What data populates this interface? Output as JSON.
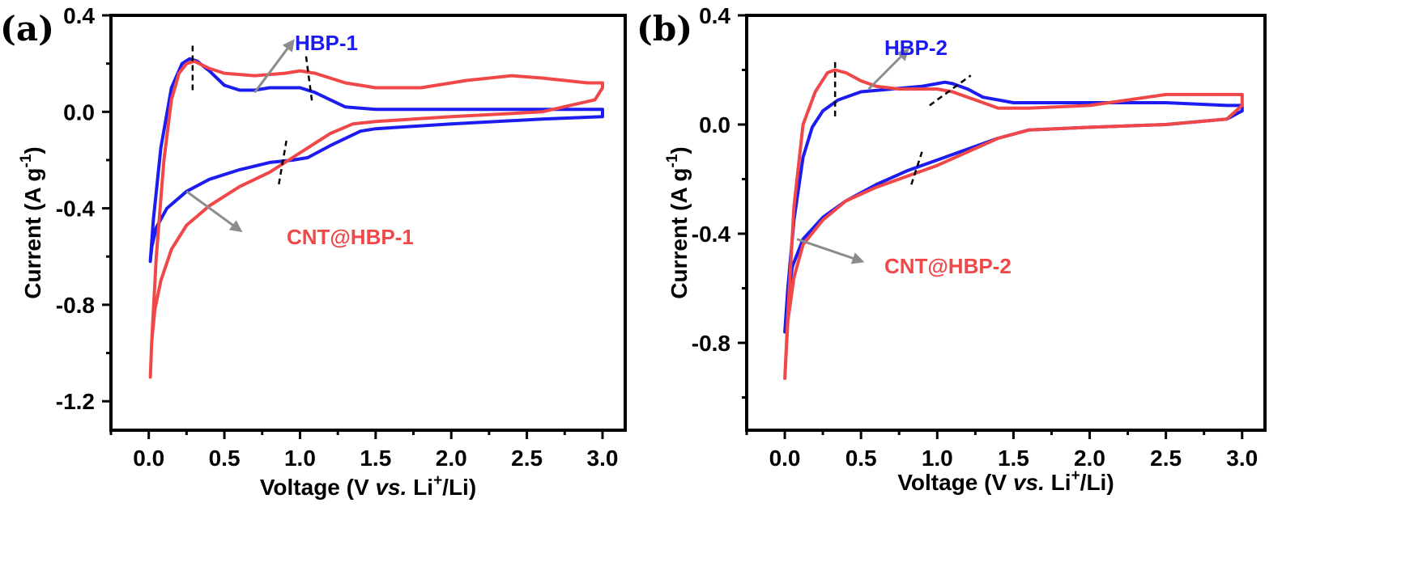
{
  "chart_data": [
    {
      "type": "line",
      "panel_label": "(a)",
      "xlabel_parts": [
        "Voltage (V ",
        "vs.",
        " Li",
        "+",
        "/Li)"
      ],
      "ylabel_parts": [
        "Current (A g",
        "-1",
        ")"
      ],
      "xlim": [
        -0.25,
        3.15
      ],
      "ylim": [
        -1.32,
        0.4
      ],
      "xticks": [
        0.0,
        0.5,
        1.0,
        1.5,
        2.0,
        2.5,
        3.0
      ],
      "xtick_labels": [
        "0.0",
        "0.5",
        "1.0",
        "1.5",
        "2.0",
        "2.5",
        "3.0"
      ],
      "yticks": [
        0.4,
        0.0,
        -0.4,
        -0.8,
        -1.2
      ],
      "ytick_labels": [
        "0.4",
        "0.0",
        "-0.4",
        "-0.8",
        "-1.2"
      ],
      "colors": {
        "hbp": "#1c1cf0",
        "cnt": "#f04848",
        "arrow": "#8c8c8c",
        "axis": "#000000"
      },
      "series": [
        {
          "name": "HBP-1",
          "color_key": "hbp",
          "x": [
            3.0,
            2.6,
            2.0,
            1.5,
            1.4,
            1.2,
            1.05,
            0.95,
            0.8,
            0.6,
            0.4,
            0.25,
            0.12,
            0.05,
            0.02,
            0.01,
            0.03,
            0.08,
            0.15,
            0.22,
            0.27,
            0.32,
            0.4,
            0.5,
            0.6,
            0.7,
            0.8,
            0.9,
            1.0,
            1.1,
            1.2,
            1.3,
            1.5,
            2.0,
            2.5,
            2.8,
            3.0,
            3.0
          ],
          "y": [
            -0.02,
            -0.03,
            -0.05,
            -0.07,
            -0.08,
            -0.14,
            -0.19,
            -0.2,
            -0.21,
            -0.24,
            -0.28,
            -0.33,
            -0.4,
            -0.48,
            -0.56,
            -0.62,
            -0.45,
            -0.15,
            0.1,
            0.2,
            0.22,
            0.21,
            0.17,
            0.11,
            0.09,
            0.09,
            0.1,
            0.1,
            0.1,
            0.08,
            0.05,
            0.02,
            0.01,
            0.01,
            0.01,
            0.01,
            0.01,
            -0.02
          ]
        },
        {
          "name": "CNT@HBP-1",
          "color_key": "cnt",
          "x": [
            3.0,
            2.95,
            2.6,
            2.0,
            1.5,
            1.35,
            1.2,
            1.0,
            0.9,
            0.8,
            0.6,
            0.4,
            0.25,
            0.15,
            0.08,
            0.04,
            0.02,
            0.01,
            0.02,
            0.05,
            0.1,
            0.15,
            0.2,
            0.25,
            0.3,
            0.4,
            0.5,
            0.7,
            0.9,
            1.0,
            1.1,
            1.3,
            1.5,
            1.8,
            2.1,
            2.4,
            2.6,
            2.9,
            3.0,
            3.0
          ],
          "y": [
            0.1,
            0.05,
            0.0,
            -0.02,
            -0.04,
            -0.05,
            -0.09,
            -0.17,
            -0.21,
            -0.25,
            -0.31,
            -0.39,
            -0.47,
            -0.57,
            -0.7,
            -0.82,
            -0.95,
            -1.1,
            -0.95,
            -0.6,
            -0.2,
            0.05,
            0.16,
            0.2,
            0.21,
            0.18,
            0.16,
            0.15,
            0.16,
            0.17,
            0.16,
            0.12,
            0.1,
            0.1,
            0.13,
            0.15,
            0.14,
            0.12,
            0.12,
            0.1
          ]
        }
      ],
      "labels": [
        {
          "text": "HBP-1",
          "color_key": "hbp"
        },
        {
          "text": "CNT@HBP-1",
          "color_key": "cnt"
        }
      ],
      "peak_markers": [
        {
          "x": 0.29,
          "y": [
            0.09,
            0.28
          ]
        },
        {
          "x": [
            1.04,
            1.08
          ],
          "y": [
            0.23,
            0.04
          ]
        },
        {
          "x": [
            0.86,
            0.91
          ],
          "y": [
            -0.3,
            -0.12
          ]
        }
      ],
      "arrows": [
        {
          "from": [
            0.7,
            0.08
          ],
          "to": [
            0.95,
            0.29
          ],
          "label_index": 0
        },
        {
          "from": [
            0.25,
            -0.33
          ],
          "to": [
            0.6,
            -0.49
          ],
          "label_index": 1
        }
      ]
    },
    {
      "type": "line",
      "panel_label": "(b)",
      "xlabel_parts": [
        "Voltage (V ",
        "vs.",
        " Li",
        "+",
        "/Li)"
      ],
      "ylabel_parts": [
        "Current (A g",
        "-1",
        ")"
      ],
      "xlim": [
        -0.25,
        3.15
      ],
      "ylim": [
        -1.12,
        0.4
      ],
      "xticks": [
        0.0,
        0.5,
        1.0,
        1.5,
        2.0,
        2.5,
        3.0
      ],
      "xtick_labels": [
        "0.0",
        "0.5",
        "1.0",
        "1.5",
        "2.0",
        "2.5",
        "3.0"
      ],
      "yticks": [
        0.4,
        0.0,
        -0.4,
        -0.8
      ],
      "ytick_labels": [
        "0.4",
        "0.0",
        "-0.4",
        "-0.8"
      ],
      "colors": {
        "hbp": "#1c1cf0",
        "cnt": "#f04848",
        "arrow": "#8c8c8c",
        "axis": "#000000"
      },
      "series": [
        {
          "name": "HBP-2",
          "color_key": "hbp",
          "x": [
            3.0,
            2.9,
            2.5,
            2.0,
            1.6,
            1.4,
            1.2,
            1.0,
            0.8,
            0.6,
            0.4,
            0.25,
            0.12,
            0.05,
            0.02,
            0.0,
            0.02,
            0.06,
            0.12,
            0.18,
            0.25,
            0.35,
            0.5,
            0.7,
            0.9,
            1.0,
            1.05,
            1.1,
            1.2,
            1.3,
            1.5,
            2.0,
            2.5,
            2.9,
            3.0,
            3.0
          ],
          "y": [
            0.05,
            0.02,
            0.0,
            -0.01,
            -0.02,
            -0.05,
            -0.09,
            -0.13,
            -0.17,
            -0.22,
            -0.28,
            -0.34,
            -0.42,
            -0.52,
            -0.63,
            -0.76,
            -0.6,
            -0.35,
            -0.12,
            -0.01,
            0.05,
            0.09,
            0.12,
            0.13,
            0.14,
            0.15,
            0.155,
            0.15,
            0.13,
            0.1,
            0.08,
            0.08,
            0.08,
            0.07,
            0.07,
            0.05
          ]
        },
        {
          "name": "CNT@HBP-2",
          "color_key": "cnt",
          "x": [
            3.0,
            2.9,
            2.5,
            2.0,
            1.6,
            1.4,
            1.2,
            1.0,
            0.8,
            0.6,
            0.4,
            0.25,
            0.12,
            0.06,
            0.02,
            0.0,
            0.02,
            0.06,
            0.12,
            0.2,
            0.28,
            0.33,
            0.4,
            0.5,
            0.6,
            0.75,
            0.9,
            1.0,
            1.1,
            1.2,
            1.4,
            1.6,
            2.0,
            2.5,
            2.9,
            3.0,
            3.0
          ],
          "y": [
            0.07,
            0.02,
            0.0,
            -0.01,
            -0.02,
            -0.05,
            -0.1,
            -0.15,
            -0.19,
            -0.23,
            -0.28,
            -0.35,
            -0.44,
            -0.56,
            -0.72,
            -0.93,
            -0.7,
            -0.3,
            0.0,
            0.12,
            0.19,
            0.2,
            0.19,
            0.16,
            0.14,
            0.13,
            0.13,
            0.13,
            0.12,
            0.1,
            0.06,
            0.06,
            0.07,
            0.11,
            0.11,
            0.11,
            0.07
          ]
        }
      ],
      "labels": [
        {
          "text": "HBP-2",
          "color_key": "hbp"
        },
        {
          "text": "CNT@HBP-2",
          "color_key": "cnt"
        }
      ],
      "peak_markers": [
        {
          "x": 0.33,
          "y": [
            0.03,
            0.24
          ]
        },
        {
          "x": [
            0.95,
            1.22
          ],
          "y": [
            0.07,
            0.18
          ]
        },
        {
          "x": [
            0.83,
            0.9
          ],
          "y": [
            -0.22,
            -0.1
          ]
        }
      ],
      "arrows": [
        {
          "from": [
            0.55,
            0.13
          ],
          "to": [
            0.8,
            0.27
          ],
          "label_index": 0
        },
        {
          "from": [
            0.08,
            -0.42
          ],
          "to": [
            0.5,
            -0.5
          ],
          "label_index": 1
        }
      ]
    }
  ]
}
